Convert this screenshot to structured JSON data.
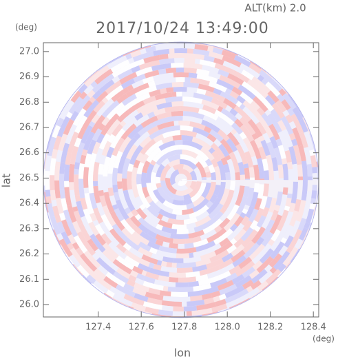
{
  "chart_data": {
    "type": "heatmap",
    "title": "2017/10/24 13:49:00",
    "subtitle": "ALT(km) 2.0",
    "x_label": "lon",
    "y_label": "lat",
    "x_unit": "(deg)",
    "y_unit": "(deg)",
    "xlim": [
      127.145,
      128.425
    ],
    "ylim": [
      25.951,
      27.035
    ],
    "xticks": [
      127.4,
      127.6,
      127.8,
      {
        "value": 128.0,
        "label": "128.0"
      },
      128.2,
      128.4
    ],
    "yticks": [
      {
        "value": 26.0,
        "label": "26.0"
      },
      26.1,
      26.2,
      26.3,
      26.4,
      26.5,
      26.6,
      26.7,
      26.8,
      26.9,
      {
        "value": 27.0,
        "label": "27.0"
      }
    ]
  }
}
